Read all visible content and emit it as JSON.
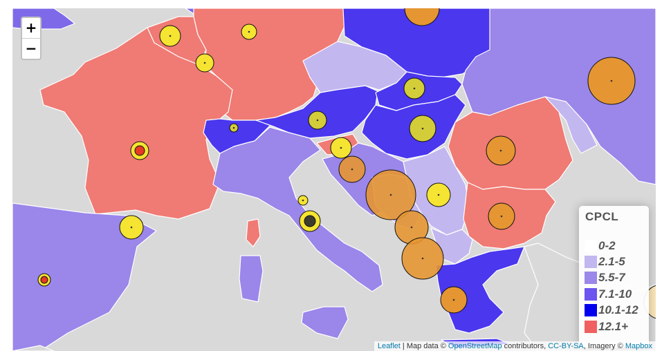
{
  "controls": {
    "zoom_in": "+",
    "zoom_out": "−"
  },
  "legend": {
    "title": "CPCL",
    "items": [
      {
        "label": "0-2",
        "color": "#ffffff"
      },
      {
        "label": "2.1-5",
        "color": "#c3b7f0"
      },
      {
        "label": "5.5-7",
        "color": "#9b86ea"
      },
      {
        "label": "7.1-10",
        "color": "#6b54ef"
      },
      {
        "label": "10.1-12",
        "color": "#0000ee"
      },
      {
        "label": "12.1+",
        "color": "#f06060"
      }
    ]
  },
  "attribution": {
    "leaflet": "Leaflet",
    "separator": " | Map data © ",
    "osm": "OpenStreetMap",
    "contributors": " contributors, ",
    "license": "CC-BY-SA",
    "imagery": ", Imagery © ",
    "mapbox": "Mapbox"
  },
  "colors": {
    "background": "#d9d9d9",
    "border": "#ffffff",
    "marker_yellow": "#f5e431",
    "marker_orange": "#e59632",
    "marker_olive": "#d4cd3a",
    "marker_red": "#e53b24"
  }
}
